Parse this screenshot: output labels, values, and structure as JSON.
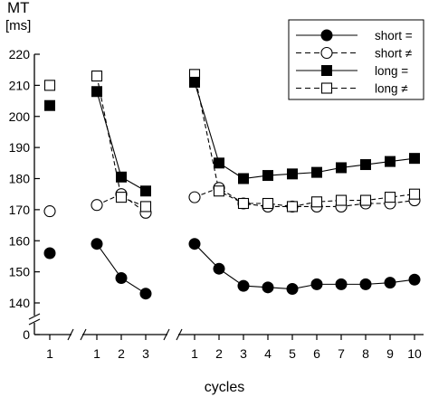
{
  "chart_data": {
    "type": "line",
    "ylabel": "MT",
    "yunit": "[ms]",
    "xlabel": "cycles",
    "ylim": [
      140,
      220
    ],
    "ybreak_label": "0",
    "yticks": [
      140,
      150,
      160,
      170,
      180,
      190,
      200,
      210,
      220
    ],
    "grid": false,
    "legend_position": "top-right",
    "groups": [
      {
        "x": [
          1
        ]
      },
      {
        "x": [
          1,
          2,
          3
        ]
      },
      {
        "x": [
          1,
          2,
          3,
          4,
          5,
          6,
          7,
          8,
          9,
          10
        ]
      }
    ],
    "series": [
      {
        "name": "short =",
        "marker": "filled-circle",
        "line": "solid",
        "values": [
          [
            156
          ],
          [
            159,
            148,
            143
          ],
          [
            159,
            151,
            145.5,
            145,
            144.5,
            146,
            146,
            146,
            146.5,
            147.5
          ]
        ]
      },
      {
        "name": "short ≠",
        "marker": "open-circle",
        "line": "dashed",
        "values": [
          [
            169.5
          ],
          [
            171.5,
            175,
            169
          ],
          [
            174,
            177,
            172,
            171,
            171,
            171,
            171,
            172,
            172,
            173
          ]
        ]
      },
      {
        "name": "long =",
        "marker": "filled-square",
        "line": "solid",
        "values": [
          [
            203.5
          ],
          [
            208,
            180.5,
            176
          ],
          [
            211,
            185,
            180,
            181,
            181.5,
            182,
            183.5,
            184.5,
            185.5,
            186.5
          ]
        ]
      },
      {
        "name": "long ≠",
        "marker": "open-square",
        "line": "dashed",
        "values": [
          [
            210
          ],
          [
            213,
            174,
            171
          ],
          [
            213.5,
            176,
            172,
            172,
            171,
            172.5,
            173,
            173,
            174,
            175
          ]
        ]
      }
    ]
  }
}
